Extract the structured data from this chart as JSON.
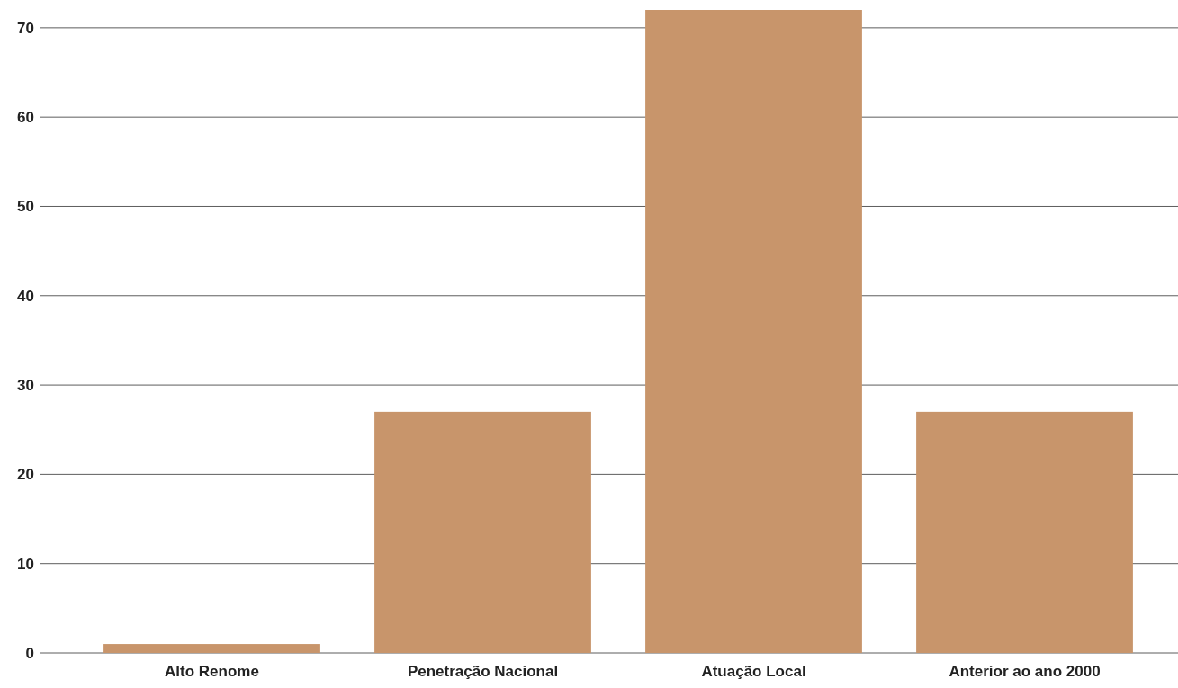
{
  "chart_data": {
    "type": "bar",
    "categories": [
      "Alto Renome",
      "Penetração Nacional",
      "Atuação Local",
      "Anterior ao ano 2000"
    ],
    "values": [
      1,
      27,
      72,
      27
    ],
    "color": "#c8956b",
    "ylim": [
      0,
      72
    ],
    "yticks": [
      0,
      10,
      20,
      30,
      40,
      50,
      60,
      70
    ],
    "grid": "y"
  }
}
